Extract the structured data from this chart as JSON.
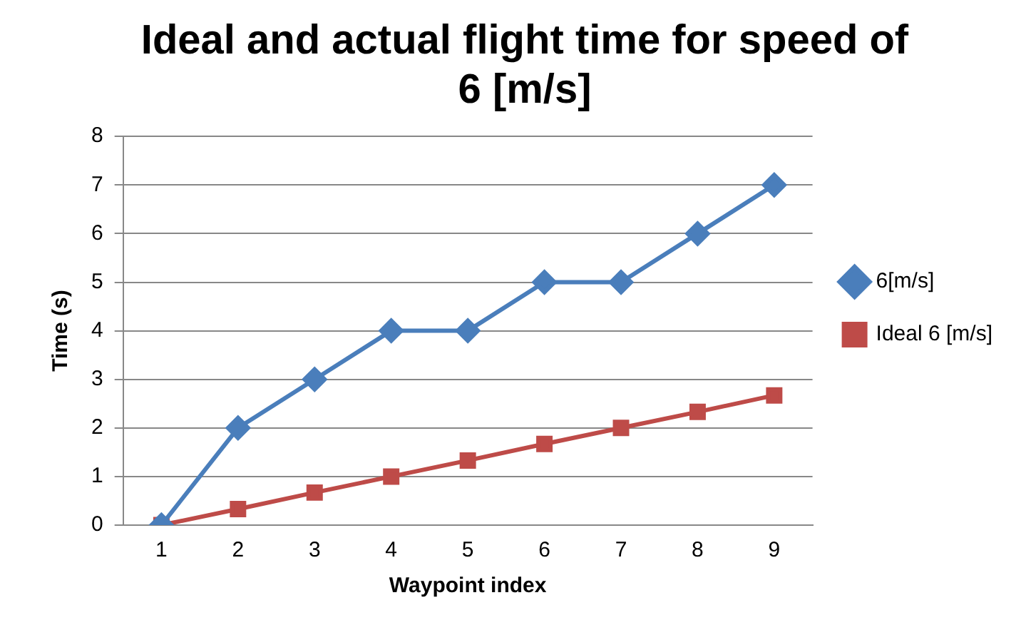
{
  "chart_data": {
    "type": "line",
    "title": "Ideal and actual flight time for speed of 6 [m/s]",
    "xlabel": "Waypoint index",
    "ylabel": "Time (s)",
    "categories": [
      "1",
      "2",
      "3",
      "4",
      "5",
      "6",
      "7",
      "8",
      "9"
    ],
    "series": [
      {
        "name": "6[m/s]",
        "color": "#4a7ebb",
        "marker": "diamond",
        "values": [
          0,
          2,
          3,
          4,
          4,
          5,
          5,
          6,
          7
        ]
      },
      {
        "name": "Ideal 6 [m/s]",
        "color": "#be4b48",
        "marker": "square",
        "values": [
          0,
          0.33,
          0.67,
          1,
          1.33,
          1.67,
          2,
          2.33,
          2.67
        ]
      }
    ],
    "ylim": [
      0,
      8
    ],
    "yticks": [
      0,
      1,
      2,
      3,
      4,
      5,
      6,
      7,
      8
    ],
    "grid": "y",
    "legend": "right",
    "line_style": "solid"
  }
}
